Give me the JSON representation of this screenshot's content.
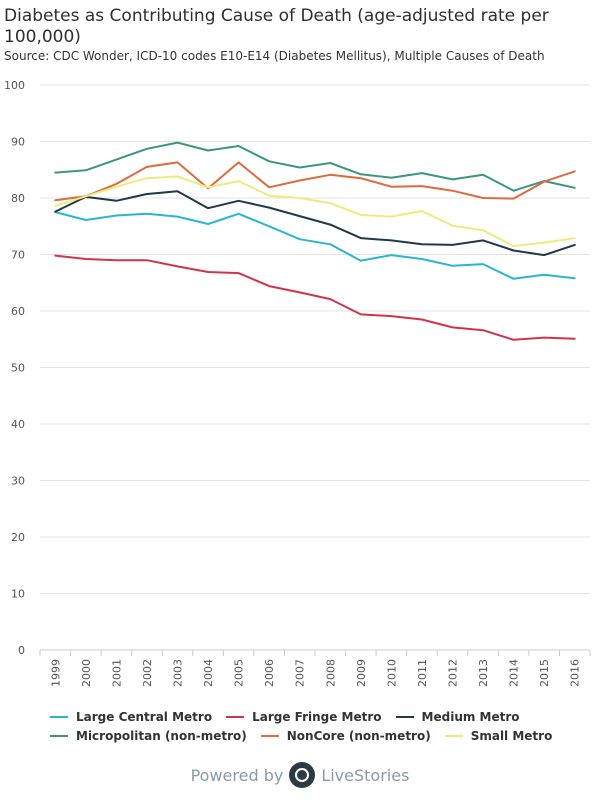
{
  "title": "Diabetes as Contributing Cause of Death (age-adjusted rate per 100,000)",
  "subtitle": "Source: CDC Wonder, ICD-10 codes E10-E14 (Diabetes Mellitus), Multiple Causes of Death",
  "footer": {
    "powered_label": "Powered by",
    "brand": "LiveStories"
  },
  "chart_data": {
    "type": "line",
    "title": "Diabetes as Contributing Cause of Death (age-adjusted rate per 100,000)",
    "subtitle": "Source: CDC Wonder, ICD-10 codes E10-E14 (Diabetes Mellitus), Multiple Causes of Death",
    "xlabel": "",
    "ylabel": "",
    "ylim": [
      0,
      100
    ],
    "yticks": [
      0,
      10,
      20,
      30,
      40,
      50,
      60,
      70,
      80,
      90,
      100
    ],
    "grid": true,
    "legend_position": "bottom",
    "categories": [
      "1999",
      "2000",
      "2001",
      "2002",
      "2003",
      "2004",
      "2005",
      "2006",
      "2007",
      "2008",
      "2009",
      "2010",
      "2011",
      "2012",
      "2013",
      "2014",
      "2015",
      "2016"
    ],
    "series": [
      {
        "name": "Large Central Metro",
        "color": "#29b6d0",
        "values": [
          77.5,
          76.1,
          76.9,
          77.2,
          76.7,
          75.4,
          77.2,
          75.0,
          72.7,
          71.8,
          68.9,
          69.9,
          69.2,
          68.0,
          68.3,
          65.7,
          66.4,
          65.8
        ]
      },
      {
        "name": "Large Fringe Metro",
        "color": "#d1344a",
        "values": [
          69.8,
          69.2,
          69.0,
          69.0,
          67.9,
          66.9,
          66.7,
          64.4,
          63.3,
          62.1,
          59.4,
          59.1,
          58.5,
          57.1,
          56.6,
          54.9,
          55.3,
          55.1
        ]
      },
      {
        "name": "Medium Metro",
        "color": "#1f3a47",
        "values": [
          77.6,
          80.2,
          79.5,
          80.7,
          81.2,
          78.2,
          79.5,
          78.3,
          76.8,
          75.3,
          72.9,
          72.5,
          71.8,
          71.7,
          72.5,
          70.7,
          69.9,
          71.7
        ]
      },
      {
        "name": "Micropolitan (non-metro)",
        "color": "#3a9683",
        "values": [
          84.5,
          84.9,
          86.8,
          88.7,
          89.8,
          88.4,
          89.2,
          86.5,
          85.4,
          86.2,
          84.2,
          83.6,
          84.4,
          83.3,
          84.1,
          81.3,
          83.0,
          81.8
        ]
      },
      {
        "name": "NonCore (non-metro)",
        "color": "#de6b3d",
        "values": [
          79.6,
          80.3,
          82.5,
          85.5,
          86.3,
          81.7,
          86.3,
          81.9,
          83.1,
          84.1,
          83.5,
          82.0,
          82.1,
          81.3,
          80.0,
          79.9,
          82.9,
          84.7
        ]
      },
      {
        "name": "Small Metro",
        "color": "#f0ea7e",
        "values": [
          78.6,
          80.3,
          82.0,
          83.5,
          83.8,
          81.9,
          83.0,
          80.4,
          80.0,
          79.1,
          77.0,
          76.7,
          77.7,
          75.1,
          74.3,
          71.5,
          72.1,
          72.9
        ]
      }
    ]
  }
}
